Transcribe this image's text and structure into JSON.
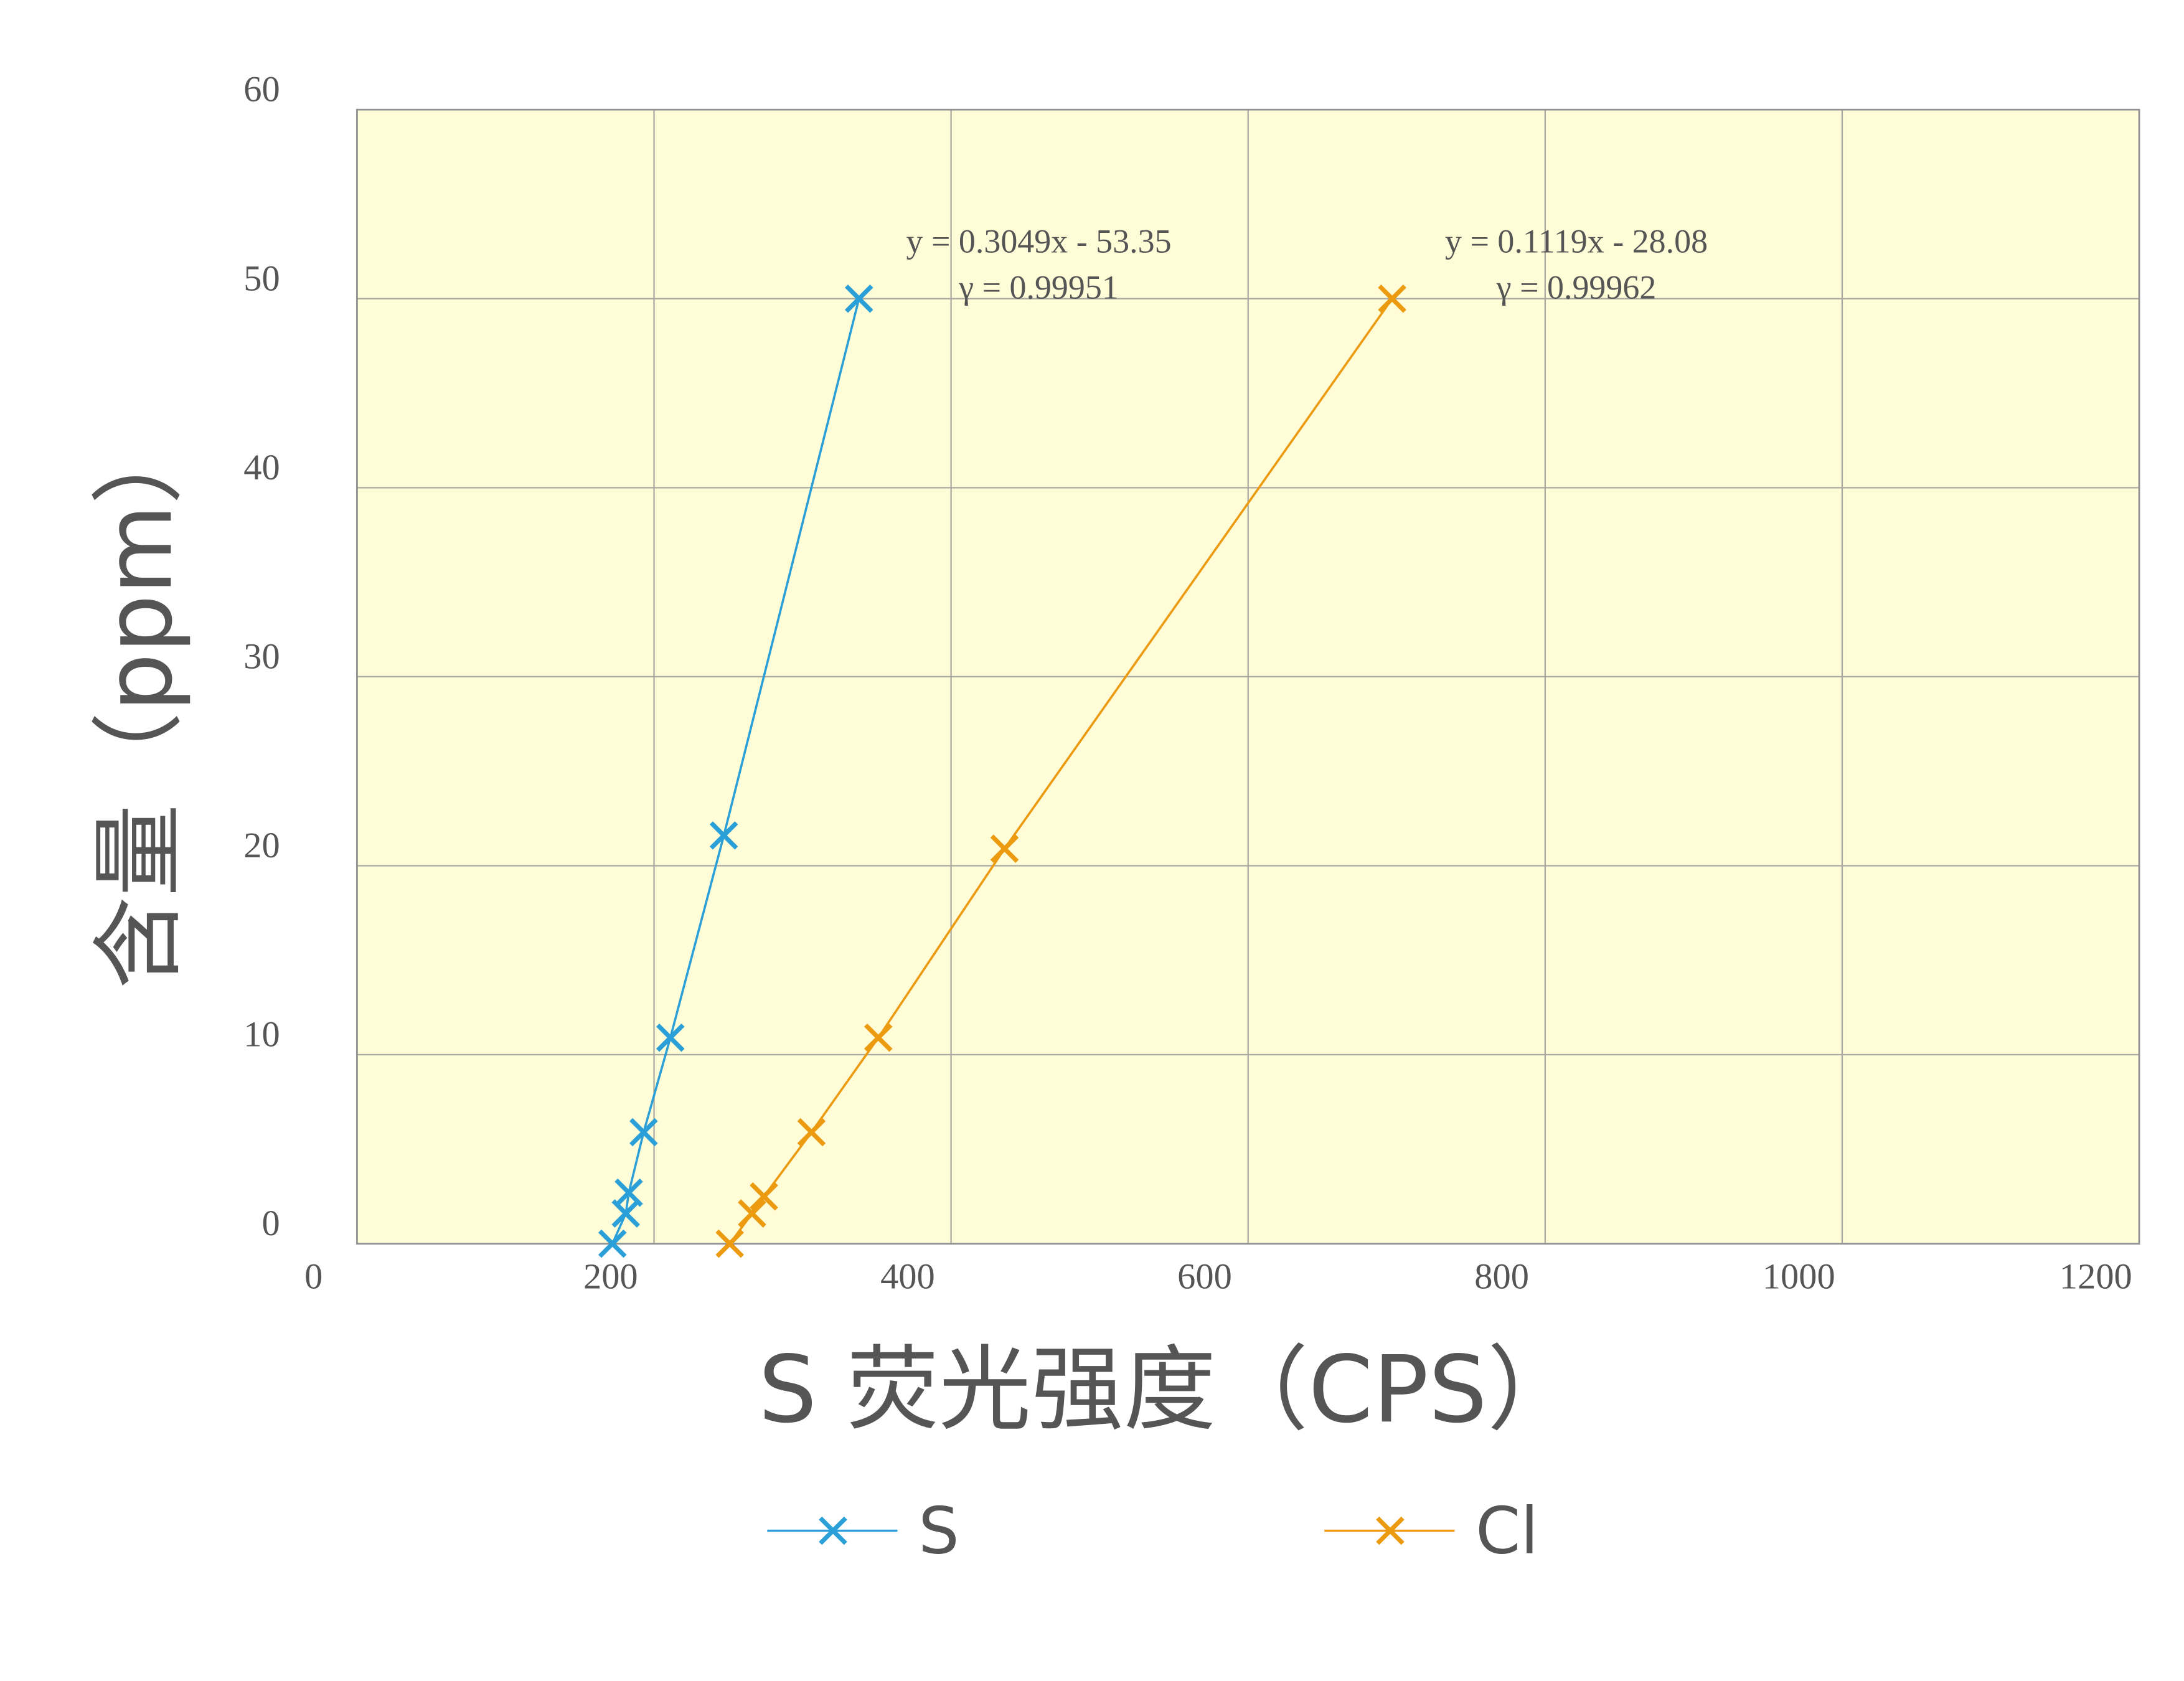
{
  "chart_data": {
    "type": "scatter",
    "x_label": "S  荧光强度（CPS）",
    "y_label": "含量（ppm）",
    "xlim": [
      0,
      1200
    ],
    "xticks": [
      0,
      200,
      400,
      600,
      800,
      1000,
      1200
    ],
    "ylim": [
      0,
      60
    ],
    "yticks": [
      0,
      10,
      20,
      30,
      40,
      50,
      60
    ],
    "grid": true,
    "legend": "bottom",
    "plot_background": "#fefdd8",
    "series": [
      {
        "name": "S",
        "color": "#2a9fd8",
        "x": [
          172,
          181,
          183,
          193,
          211,
          247,
          338
        ],
        "values": [
          0,
          1.6,
          2.7,
          5.9,
          10.9,
          21.6,
          50.0
        ]
      },
      {
        "name": "Cl",
        "color": "#ec9a10",
        "x": [
          251,
          266,
          274,
          306,
          351,
          436,
          697
        ],
        "values": [
          0,
          1.6,
          2.5,
          5.9,
          10.9,
          20.9,
          50.0
        ]
      }
    ],
    "annotations": [
      {
        "equation": "y = 0.3049x - 53.35",
        "r": "γ = 0.99951"
      },
      {
        "equation": "y = 0.1119x - 28.08",
        "r": "γ = 0.99962"
      }
    ]
  }
}
